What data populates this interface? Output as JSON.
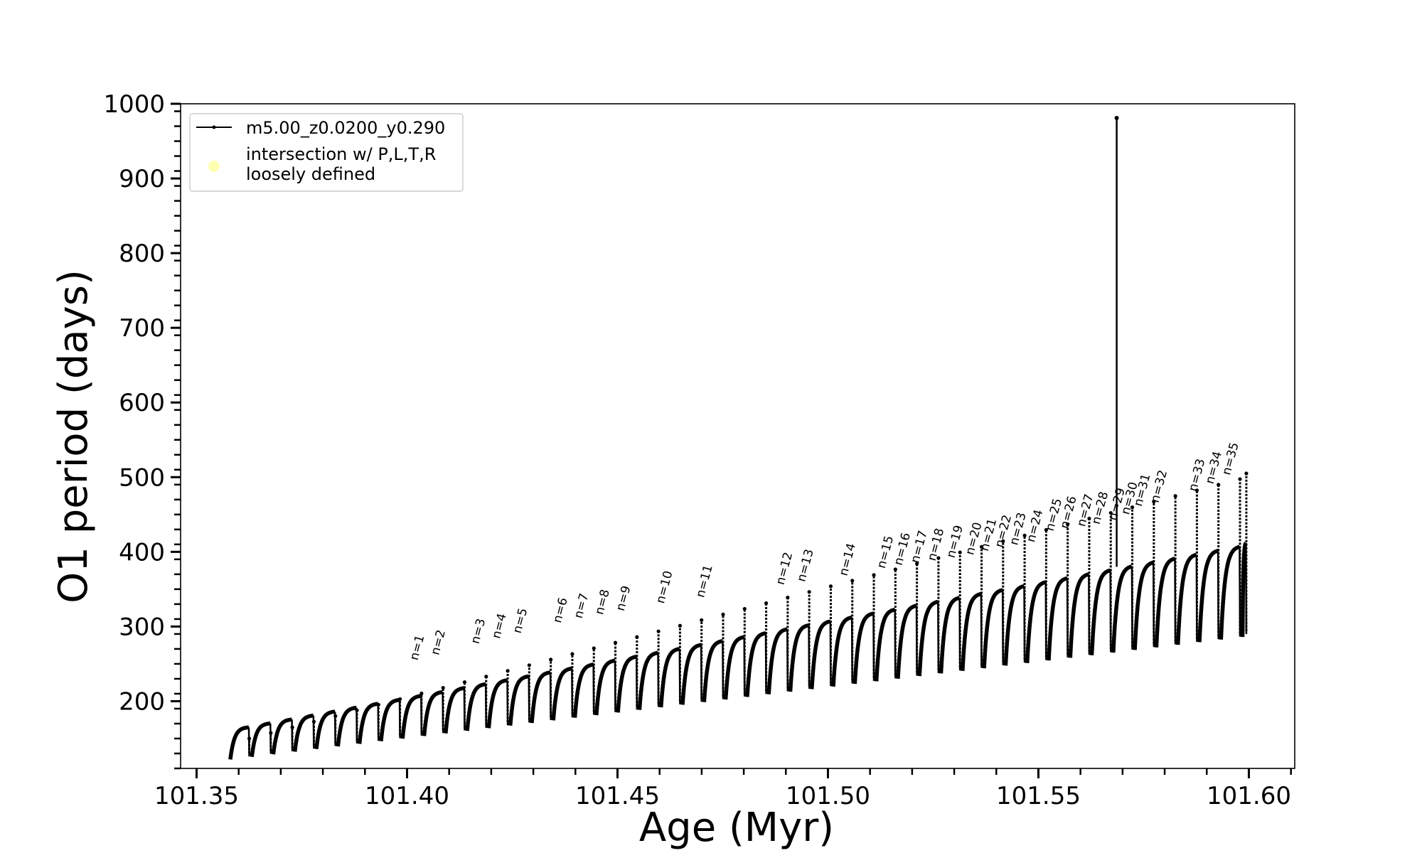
{
  "chart_data": {
    "type": "line",
    "title": "",
    "xlabel": "Age (Myr)",
    "ylabel": "O1 period (days)",
    "xlim": [
      101.3462,
      101.6109
    ],
    "ylim": [
      110,
      1000
    ],
    "xticks": [
      "101.35",
      "101.40",
      "101.45",
      "101.50",
      "101.55",
      "101.60"
    ],
    "yticks": [
      "200",
      "300",
      "400",
      "500",
      "600",
      "700",
      "800",
      "900",
      "1000"
    ],
    "grid": false,
    "legend": {
      "placement": "top-left",
      "entries": [
        {
          "label": "m5.00_z0.0200_y0.290",
          "marker": "line-with-dot",
          "color": "#000000"
        },
        {
          "label_lines": [
            "intersection w/ P,L,T,R",
            "loosely defined"
          ],
          "marker": "circle",
          "color": "#ffffb3"
        }
      ]
    },
    "series": [
      {
        "name": "m5.00_z0.0200_y0.290",
        "color": "#000000",
        "pulse_count": 48,
        "pulse_start_age": [
          101.358,
          101.5985
        ],
        "pulse_end_age_first": 101.3625,
        "period_min_at_pulse": [
          122,
          286
        ],
        "period_max_at_pulse": [
          165,
          412
        ],
        "spike_period": [
          150,
          505
        ],
        "outlier_point": {
          "x": 101.5686,
          "y": 981
        }
      }
    ],
    "annotations": [
      {
        "text": "n=1",
        "x": 101.4025,
        "y": 254
      },
      {
        "text": "n=2",
        "x": 101.4075,
        "y": 261
      },
      {
        "text": "n=3",
        "x": 101.417,
        "y": 276
      },
      {
        "text": "n=4",
        "x": 101.422,
        "y": 283
      },
      {
        "text": "n=5",
        "x": 101.427,
        "y": 290
      },
      {
        "text": "n=6",
        "x": 101.4365,
        "y": 304
      },
      {
        "text": "n=7",
        "x": 101.4415,
        "y": 310
      },
      {
        "text": "n=8",
        "x": 101.4465,
        "y": 315
      },
      {
        "text": "n=9",
        "x": 101.4515,
        "y": 320
      },
      {
        "text": "n=10",
        "x": 101.461,
        "y": 330
      },
      {
        "text": "n=11",
        "x": 101.4705,
        "y": 338
      },
      {
        "text": "n=12",
        "x": 101.4895,
        "y": 355
      },
      {
        "text": "n=13",
        "x": 101.4945,
        "y": 359
      },
      {
        "text": "n=14",
        "x": 101.5045,
        "y": 367
      },
      {
        "text": "n=15",
        "x": 101.5135,
        "y": 377
      },
      {
        "text": "n=16",
        "x": 101.5175,
        "y": 381
      },
      {
        "text": "n=17",
        "x": 101.5215,
        "y": 384
      },
      {
        "text": "n=18",
        "x": 101.5255,
        "y": 387
      },
      {
        "text": "n=19",
        "x": 101.53,
        "y": 391
      },
      {
        "text": "n=20",
        "x": 101.5345,
        "y": 395
      },
      {
        "text": "n=21",
        "x": 101.538,
        "y": 400
      },
      {
        "text": "n=22",
        "x": 101.5415,
        "y": 405
      },
      {
        "text": "n=23",
        "x": 101.545,
        "y": 408
      },
      {
        "text": "n=24",
        "x": 101.549,
        "y": 412
      },
      {
        "text": "n=25",
        "x": 101.5535,
        "y": 427
      },
      {
        "text": "n=26",
        "x": 101.557,
        "y": 430
      },
      {
        "text": "n=27",
        "x": 101.561,
        "y": 433
      },
      {
        "text": "n=28",
        "x": 101.5645,
        "y": 436
      },
      {
        "text": "n=29",
        "x": 101.5685,
        "y": 441
      },
      {
        "text": "n=30",
        "x": 101.5715,
        "y": 449
      },
      {
        "text": "n=31",
        "x": 101.5745,
        "y": 460
      },
      {
        "text": "n=32",
        "x": 101.5785,
        "y": 465
      },
      {
        "text": "n=33",
        "x": 101.5875,
        "y": 480
      },
      {
        "text": "n=34",
        "x": 101.5915,
        "y": 490
      },
      {
        "text": "n=35",
        "x": 101.5955,
        "y": 502
      }
    ]
  }
}
